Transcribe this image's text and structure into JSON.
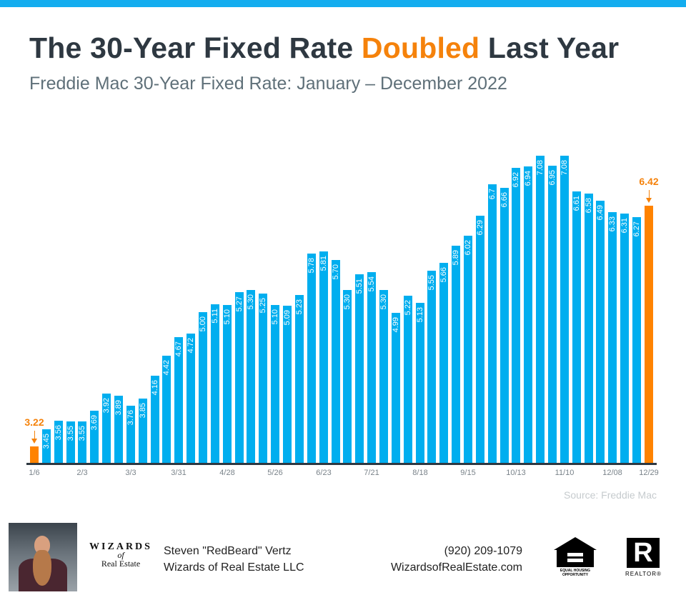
{
  "header": {
    "title_pre": "The 30-Year Fixed Rate ",
    "title_highlight": "Doubled",
    "title_post": " Last Year",
    "subtitle": "Freddie Mac 30-Year Fixed Rate: January – December 2022"
  },
  "colors": {
    "accent_blue": "#00AEEF",
    "highlight_orange": "#FF8300",
    "title_dark": "#2E3841",
    "top_bar": "#14ADEF"
  },
  "callouts": {
    "start": "3.22",
    "end": "6.42"
  },
  "source": "Source: Freddie Mac",
  "footer": {
    "agent_name": "Steven \"RedBeard\" Vertz",
    "company": "Wizards of Real Estate LLC",
    "phone": "(920) 209-1079",
    "website": "WizardsofRealEstate.com",
    "logo_line1": "WIZARDS",
    "logo_line2": "of",
    "logo_line3": "Real Estate",
    "eho_text": "EQUAL HOUSING OPPORTUNITY",
    "realtor_glyph": "R",
    "realtor_text": "REALTOR®"
  },
  "chart_data": {
    "type": "bar",
    "title": "The 30-Year Fixed Rate Doubled Last Year",
    "subtitle": "Freddie Mac 30-Year Fixed Rate: January – December 2022",
    "xlabel": "",
    "ylabel": "",
    "grid": false,
    "legend": null,
    "tick_labels": [
      {
        "index": 0,
        "label": "1/6"
      },
      {
        "index": 4,
        "label": "2/3"
      },
      {
        "index": 8,
        "label": "3/3"
      },
      {
        "index": 12,
        "label": "3/31"
      },
      {
        "index": 16,
        "label": "4/28"
      },
      {
        "index": 20,
        "label": "5/26"
      },
      {
        "index": 24,
        "label": "6/23"
      },
      {
        "index": 28,
        "label": "7/21"
      },
      {
        "index": 32,
        "label": "8/18"
      },
      {
        "index": 36,
        "label": "9/15"
      },
      {
        "index": 40,
        "label": "10/13"
      },
      {
        "index": 44,
        "label": "11/10"
      },
      {
        "index": 48,
        "label": "12/08"
      },
      {
        "index": 51,
        "label": "12/29"
      }
    ],
    "values": [
      3.22,
      3.45,
      3.56,
      3.55,
      3.55,
      3.69,
      3.92,
      3.89,
      3.76,
      3.85,
      4.16,
      4.42,
      4.67,
      4.72,
      5.0,
      5.11,
      5.1,
      5.27,
      5.3,
      5.25,
      5.1,
      5.09,
      5.23,
      5.78,
      5.81,
      5.7,
      5.3,
      5.51,
      5.54,
      5.3,
      4.99,
      5.22,
      5.13,
      5.55,
      5.66,
      5.89,
      6.02,
      6.29,
      6.7,
      6.66,
      6.92,
      6.94,
      7.08,
      6.95,
      7.08,
      6.61,
      6.58,
      6.49,
      6.33,
      6.31,
      6.27,
      6.42
    ],
    "labels": [
      "",
      "3.45",
      "3.56",
      "3.55",
      "3.55",
      "3.69",
      "3.92",
      "3.89",
      "3.76",
      "3.85",
      "4.16",
      "4.42",
      "4.67",
      "4.72",
      "5.00",
      "5.11",
      "5.10",
      "5.27",
      "5.30",
      "5.25",
      "5.10",
      "5.09",
      "5.23",
      "5.78",
      "5.81",
      "5.70",
      "5.30",
      "5.51",
      "5.54",
      "5.30",
      "4.99",
      "5.22",
      "5.13",
      "5.55",
      "5.66",
      "5.89",
      "6.02",
      "6.29",
      "6.7",
      "6.66",
      "6.92",
      "6.94",
      "7.08",
      "6.95",
      "7.08",
      "6.61",
      "6.58",
      "6.49",
      "6.33",
      "6.31",
      "6.27",
      ""
    ],
    "highlighted_indices": [
      0,
      51
    ],
    "annotations": [
      {
        "index": 0,
        "text": "3.22",
        "color": "#F5820B"
      },
      {
        "index": 51,
        "text": "6.42",
        "color": "#F5820B"
      }
    ],
    "ylim": [
      3.0,
      7.2
    ],
    "source": "Source: Freddie Mac"
  }
}
